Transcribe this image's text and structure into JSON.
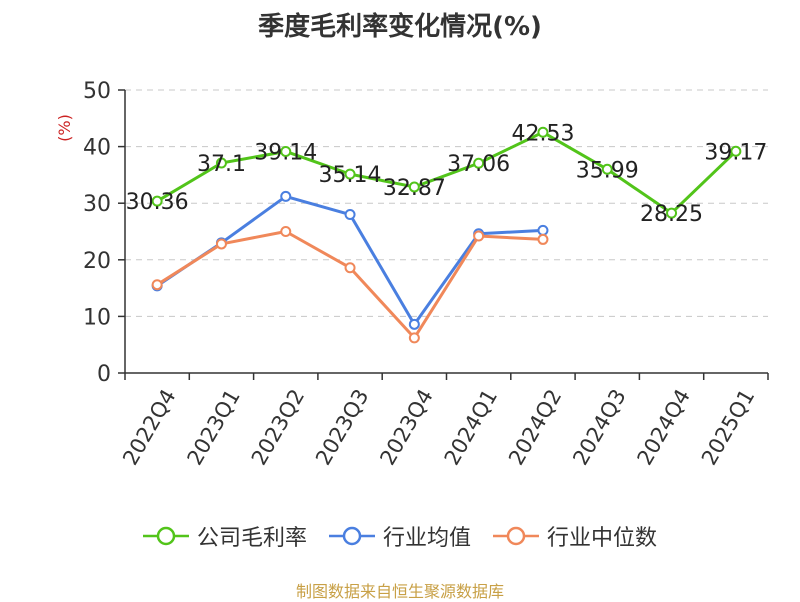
{
  "chart_data": {
    "type": "line",
    "title": "季度毛利率变化情况(%)",
    "ylabel": "(%)",
    "xlabel": "",
    "categories": [
      "2022Q4",
      "2023Q1",
      "2023Q2",
      "2023Q3",
      "2023Q4",
      "2024Q1",
      "2024Q2",
      "2024Q3",
      "2024Q4",
      "2025Q1"
    ],
    "ylim": [
      0,
      50
    ],
    "yticks": [
      0,
      10,
      20,
      30,
      40,
      50
    ],
    "grid": true,
    "legend_position": "bottom",
    "series": [
      {
        "name": "公司毛利率",
        "color": "#52c41a",
        "values": [
          30.36,
          37.1,
          39.14,
          35.14,
          32.87,
          37.06,
          42.53,
          35.99,
          28.25,
          39.17
        ],
        "labels": [
          "30.36",
          "37.1",
          "39.14",
          "35.14",
          "32.87",
          "37.06",
          "42.53",
          "35.99",
          "28.25",
          "39.17"
        ]
      },
      {
        "name": "行业均值",
        "color": "#4a7fe0",
        "values": [
          15.4,
          23.0,
          31.2,
          28.0,
          8.6,
          24.6,
          25.2,
          null,
          null,
          null
        ]
      },
      {
        "name": "行业中位数",
        "color": "#f0885a",
        "values": [
          15.6,
          22.8,
          25.0,
          18.6,
          6.2,
          24.2,
          23.6,
          null,
          null,
          null
        ]
      }
    ]
  },
  "source_note": "制图数据来自恒生聚源数据库"
}
